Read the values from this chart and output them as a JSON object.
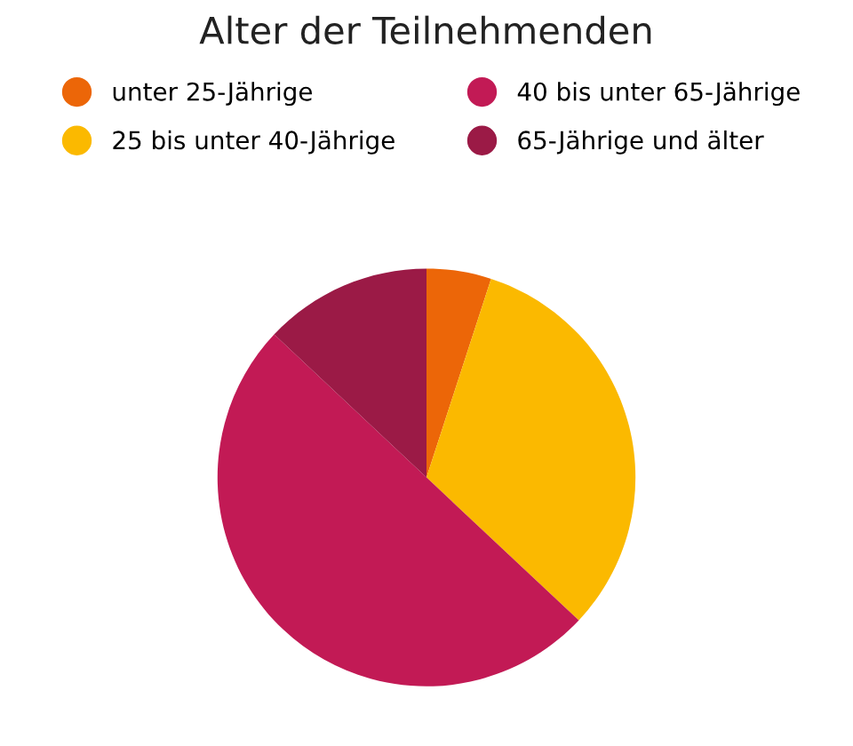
{
  "chart_data": {
    "type": "pie",
    "title": "Alter der Teilnehmenden",
    "categories": [
      "unter 25-Jährige",
      "25 bis unter 40-Jährige",
      "40 bis unter 65-Jährige",
      "65-Jährige und älter"
    ],
    "values": [
      5,
      32,
      50,
      13
    ],
    "colors": [
      "#ec6608",
      "#fbb900",
      "#c21a55",
      "#9b1a46"
    ],
    "legend": "top"
  }
}
